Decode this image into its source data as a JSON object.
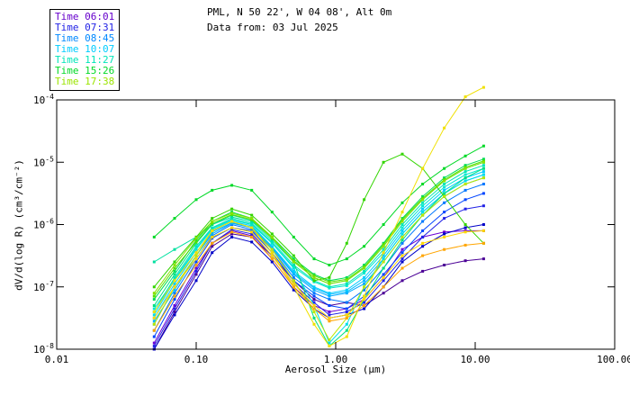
{
  "header": {
    "title": "PML, N 50 22', W 04 08', Alt 0m",
    "subtitle": "Data from: 03 Jul 2025"
  },
  "legend": {
    "position": "top-left",
    "items": [
      {
        "label": "Time 06:01",
        "color": "#6600CC"
      },
      {
        "label": "Time 07:31",
        "color": "#2222E6"
      },
      {
        "label": "Time 08:45",
        "color": "#0088FF"
      },
      {
        "label": "Time 10:07",
        "color": "#00CCFF"
      },
      {
        "label": "Time 11:27",
        "color": "#00E5B8"
      },
      {
        "label": "Time 15:26",
        "color": "#00D926"
      },
      {
        "label": "Time 17:38",
        "color": "#9BE400"
      }
    ]
  },
  "chart_data": {
    "type": "line",
    "title": "PML, N 50 22', W 04 08', Alt 0m",
    "subtitle": "Data from: 03 Jul 2025",
    "xlabel": "Aerosol Size (μm)",
    "ylabel": "dV/d(log R) (cm³/cm⁻²)",
    "x_axis": {
      "scale": "log",
      "range": [
        0.01,
        100
      ],
      "ticks": [
        0.01,
        0.1,
        1,
        10,
        100
      ],
      "tick_labels": [
        "0.01",
        "0.10",
        "1.00",
        "10.00",
        "100.00"
      ]
    },
    "y_axis": {
      "scale": "log",
      "range_exponents": [
        -8,
        -4
      ],
      "tick_exponents": [
        -4,
        -5,
        -6,
        -7,
        -8
      ],
      "tick_base": "10"
    },
    "grid": false,
    "marker": "square",
    "y_values_are_log10": true,
    "x": [
      0.05,
      0.07,
      0.1,
      0.13,
      0.18,
      0.25,
      0.35,
      0.5,
      0.7,
      0.9,
      1.2,
      1.6,
      2.2,
      3.0,
      4.2,
      6.0,
      8.5,
      11.5
    ],
    "series": [
      {
        "name": "Time 06:01",
        "color": "#4B0096",
        "logy": [
          -8.0,
          -7.4,
          -6.8,
          -6.35,
          -6.15,
          -6.2,
          -6.5,
          -6.9,
          -7.2,
          -7.3,
          -7.25,
          -7.3,
          -7.1,
          -6.9,
          -6.75,
          -6.65,
          -6.58,
          -6.55
        ]
      },
      {
        "name": "",
        "color": "#6A00D4",
        "logy": [
          -7.9,
          -7.3,
          -6.7,
          -6.3,
          -6.1,
          -6.18,
          -6.55,
          -7.0,
          -7.3,
          -7.4,
          -7.35,
          -7.2,
          -6.85,
          -6.4,
          -6.2,
          -6.12,
          -6.1,
          -6.1
        ]
      },
      {
        "name": "",
        "color": "#0000C8",
        "logy": [
          -8.0,
          -7.45,
          -6.9,
          -6.45,
          -6.2,
          -6.28,
          -6.6,
          -7.05,
          -7.35,
          -7.5,
          -7.45,
          -7.35,
          -7.0,
          -6.6,
          -6.35,
          -6.15,
          -6.05,
          -6.0
        ]
      },
      {
        "name": "Time 07:31",
        "color": "#2222E6",
        "logy": [
          -7.95,
          -7.35,
          -6.75,
          -6.3,
          -6.08,
          -6.15,
          -6.5,
          -6.95,
          -7.25,
          -7.45,
          -7.4,
          -7.25,
          -6.9,
          -6.55,
          -6.2,
          -5.9,
          -5.75,
          -5.7
        ]
      },
      {
        "name": "",
        "color": "#0044FF",
        "logy": [
          -7.8,
          -7.2,
          -6.6,
          -6.22,
          -6.05,
          -6.1,
          -6.45,
          -6.9,
          -7.15,
          -7.3,
          -7.35,
          -7.15,
          -6.8,
          -6.45,
          -6.1,
          -5.8,
          -5.6,
          -5.5
        ]
      },
      {
        "name": "Time 08:45",
        "color": "#0077FF",
        "logy": [
          -7.7,
          -7.1,
          -6.55,
          -6.18,
          -6.0,
          -6.08,
          -6.4,
          -6.85,
          -7.1,
          -7.2,
          -7.25,
          -7.05,
          -6.7,
          -6.3,
          -5.95,
          -5.65,
          -5.45,
          -5.35
        ]
      },
      {
        "name": "",
        "color": "#00AAFF",
        "logy": [
          -7.6,
          -7.0,
          -6.5,
          -6.15,
          -5.98,
          -6.05,
          -6.38,
          -6.8,
          -7.05,
          -7.15,
          -7.1,
          -6.95,
          -6.6,
          -6.2,
          -5.85,
          -5.55,
          -5.35,
          -5.25
        ]
      },
      {
        "name": "",
        "color": "#00B8FF",
        "logy": [
          -7.55,
          -7.05,
          -6.5,
          -6.12,
          -5.97,
          -6.04,
          -6.36,
          -6.78,
          -7.02,
          -7.12,
          -7.08,
          -6.9,
          -6.55,
          -6.15,
          -5.8,
          -5.5,
          -5.3,
          -5.2
        ]
      },
      {
        "name": "Time 10:07",
        "color": "#00CCFF",
        "logy": [
          -7.5,
          -6.95,
          -6.45,
          -6.1,
          -5.95,
          -6.02,
          -6.35,
          -6.75,
          -7.0,
          -7.1,
          -7.05,
          -6.85,
          -6.5,
          -6.1,
          -5.75,
          -5.45,
          -5.25,
          -5.15
        ]
      },
      {
        "name": "",
        "color": "#00DDE8",
        "logy": [
          -7.45,
          -6.9,
          -6.4,
          -6.08,
          -5.93,
          -6.0,
          -6.3,
          -6.7,
          -7.3,
          -7.9,
          -7.6,
          -7.0,
          -6.55,
          -6.15,
          -5.8,
          -5.5,
          -5.3,
          -5.2
        ]
      },
      {
        "name": "",
        "color": "#00E8D0",
        "logy": [
          -7.35,
          -6.88,
          -6.38,
          -6.06,
          -5.92,
          -6.0,
          -6.3,
          -6.68,
          -6.92,
          -7.02,
          -6.98,
          -6.78,
          -6.45,
          -6.05,
          -5.7,
          -5.4,
          -5.2,
          -5.1
        ]
      },
      {
        "name": "Time 11:27",
        "color": "#00E5B8",
        "logy": [
          -7.4,
          -6.85,
          -6.35,
          -6.05,
          -5.9,
          -5.98,
          -6.28,
          -6.65,
          -6.9,
          -7.0,
          -6.95,
          -6.75,
          -6.4,
          -6.0,
          -5.65,
          -5.35,
          -5.15,
          -5.05
        ]
      },
      {
        "name": "",
        "color": "#00E0A0",
        "logy": [
          -6.6,
          -6.4,
          -6.2,
          -6.0,
          -5.88,
          -5.95,
          -6.25,
          -6.6,
          -6.85,
          -6.95,
          -6.9,
          -6.7,
          -6.35,
          -5.95,
          -5.6,
          -5.3,
          -5.1,
          -5.0
        ]
      },
      {
        "name": "",
        "color": "#00E080",
        "logy": [
          -7.3,
          -6.8,
          -6.3,
          -6.0,
          -5.85,
          -5.93,
          -6.22,
          -6.6,
          -7.5,
          -7.95,
          -7.7,
          -7.2,
          -6.7,
          -6.25,
          -5.85,
          -5.5,
          -5.25,
          -5.1
        ]
      },
      {
        "name": "",
        "color": "#00DD55",
        "logy": [
          -7.2,
          -6.75,
          -6.25,
          -5.95,
          -5.8,
          -5.9,
          -6.2,
          -6.55,
          -6.8,
          -6.9,
          -6.85,
          -6.65,
          -6.3,
          -5.9,
          -5.55,
          -5.25,
          -5.05,
          -4.95
        ]
      },
      {
        "name": "Time 15:26",
        "color": "#00D926",
        "logy": [
          -6.2,
          -5.9,
          -5.6,
          -5.45,
          -5.37,
          -5.45,
          -5.8,
          -6.2,
          -6.55,
          -6.65,
          -6.55,
          -6.35,
          -6.0,
          -5.65,
          -5.35,
          -5.1,
          -4.9,
          -4.74
        ]
      },
      {
        "name": "",
        "color": "#33D500",
        "logy": [
          -7.0,
          -6.6,
          -6.2,
          -5.9,
          -5.75,
          -5.85,
          -6.15,
          -6.5,
          -6.9,
          -6.85,
          -6.3,
          -5.6,
          -5.0,
          -4.87,
          -5.1,
          -5.55,
          -6.0,
          -6.3
        ]
      },
      {
        "name": "",
        "color": "#55E000",
        "logy": [
          -7.15,
          -6.7,
          -6.28,
          -5.98,
          -5.84,
          -5.92,
          -6.22,
          -6.58,
          -6.82,
          -6.92,
          -6.88,
          -6.68,
          -6.32,
          -5.92,
          -5.58,
          -5.28,
          -5.08,
          -4.98
        ]
      },
      {
        "name": "Time 17:38",
        "color": "#88E200",
        "logy": [
          -7.1,
          -6.65,
          -6.22,
          -5.95,
          -5.82,
          -5.9,
          -6.2,
          -6.6,
          -6.85,
          -6.95,
          -6.9,
          -6.7,
          -6.35,
          -5.95,
          -5.6,
          -5.3,
          -5.1,
          -5.0
        ]
      },
      {
        "name": "",
        "color": "#BBE800",
        "logy": [
          -7.6,
          -7.0,
          -6.5,
          -6.1,
          -5.95,
          -6.05,
          -6.4,
          -6.9,
          -7.4,
          -7.85,
          -7.5,
          -7.0,
          -6.6,
          -6.2,
          -5.85,
          -5.55,
          -5.35,
          -5.25
        ]
      },
      {
        "name": "",
        "color": "#F0E000",
        "logy": [
          -7.4,
          -6.9,
          -6.45,
          -6.1,
          -5.95,
          -6.05,
          -6.45,
          -7.0,
          -7.6,
          -7.95,
          -7.8,
          -7.15,
          -6.45,
          -5.8,
          -5.1,
          -4.45,
          -3.95,
          -3.8
        ]
      },
      {
        "name": "",
        "color": "#FFD700",
        "logy": [
          -7.5,
          -7.0,
          -6.55,
          -6.2,
          -6.05,
          -6.12,
          -6.5,
          -6.95,
          -7.3,
          -7.5,
          -7.45,
          -7.2,
          -6.85,
          -6.5,
          -6.3,
          -6.2,
          -6.12,
          -6.1
        ]
      },
      {
        "name": "",
        "color": "#FFA500",
        "logy": [
          -7.7,
          -7.15,
          -6.65,
          -6.3,
          -6.12,
          -6.2,
          -6.55,
          -7.0,
          -7.35,
          -7.55,
          -7.5,
          -7.3,
          -7.0,
          -6.7,
          -6.5,
          -6.4,
          -6.33,
          -6.3
        ]
      }
    ]
  }
}
